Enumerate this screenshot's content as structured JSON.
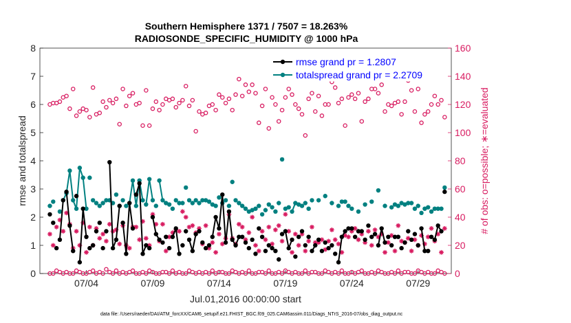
{
  "chart_data": {
    "type": "line",
    "title": "Southern Hemisphere 1371 / 7507 = 18.263%",
    "subtitle": "RADIOSONDE_SPECIFIC_HUMIDITY @ 1000 hPa",
    "xlabel": "Jul.01,2016 00:00:00 start",
    "ylabel_left": "rmse and totalspread",
    "ylabel_right": "# of obs: o=possible; ∗=evaluated",
    "footnote": "data file: /Users/raeder/DAI/ATM_forcXX/CAM6_setup/f.e21.FHIST_BGC.f09_025.CAM6assim.011/Diags_NTrS_2016-07/obs_diag_output.nc",
    "xlim": [
      0.5,
      31.5
    ],
    "ylim_left": [
      0,
      8
    ],
    "ylim_right": [
      0,
      160
    ],
    "x_ticks": [
      4,
      9,
      14,
      19,
      24,
      29
    ],
    "x_tick_labels": [
      "07/04",
      "07/09",
      "07/14",
      "07/19",
      "07/24",
      "07/29"
    ],
    "y_left_ticks": [
      0,
      1,
      2,
      3,
      4,
      5,
      6,
      7,
      8
    ],
    "y_right_ticks": [
      0,
      20,
      40,
      60,
      80,
      100,
      120,
      140,
      160
    ],
    "colors": {
      "rmse": "#000000",
      "spread": "#008080",
      "obs": "#d81b60"
    },
    "legend": [
      {
        "label": "rmse grand pr = 1.2807",
        "color": "#000000"
      },
      {
        "label": "totalspread grand pr = 2.2709",
        "color": "#008080"
      }
    ],
    "rmse_x": [
      1.25,
      1.5,
      1.75,
      2,
      2.25,
      2.5,
      2.75,
      3,
      3.25,
      3.5,
      3.75,
      4,
      4.25,
      4.5,
      4.75,
      5,
      5.25,
      5.5,
      5.75,
      6,
      6.25,
      6.5,
      6.75,
      7,
      7.25,
      7.5,
      7.75,
      8,
      8.25,
      8.5,
      8.75,
      9,
      9.25,
      9.5,
      9.75,
      10,
      10.25,
      10.5,
      10.75,
      11,
      11.25,
      11.5,
      11.75,
      12,
      12.25,
      12.5,
      12.75,
      13,
      13.25,
      13.5,
      13.75,
      14,
      14.25,
      14.5,
      14.75,
      15,
      15.25,
      15.5,
      15.75,
      16,
      16.25,
      16.5,
      16.75,
      17,
      17.25,
      17.5,
      17.75,
      18,
      18.25,
      18.5,
      18.75,
      19,
      19.25,
      19.5,
      19.75,
      20,
      20.25,
      20.5,
      20.75,
      21,
      21.25,
      21.5,
      21.75,
      22,
      22.25,
      22.5,
      22.75,
      23,
      23.25,
      23.5,
      23.75,
      24,
      24.25,
      24.5,
      24.75,
      25,
      25.25,
      25.5,
      25.75,
      26,
      26.25,
      26.5,
      26.75,
      27,
      27.25,
      27.5,
      27.75,
      28,
      28.25,
      28.5,
      28.75,
      29,
      29.25,
      29.5,
      29.75,
      30,
      30.25,
      30.5,
      30.75,
      31
    ],
    "rmse": [
      2.1,
      1.8,
      0.9,
      1.2,
      2.6,
      2.9,
      1.7,
      0.8,
      2.75,
      0.4,
      2.3,
      1.3,
      0.9,
      1.0,
      1.5,
      1.8,
      0.9,
      1.5,
      3.95,
      0.9,
      1.2,
      2.4,
      1.8,
      0.7,
      2.5,
      1.6,
      2.8,
      3.2,
      0.7,
      1.0,
      0.9,
      2.0,
      1.4,
      1.2,
      1.1,
      1.3,
      0.9,
      1.3,
      1.6,
      0.7,
      1.0,
      1.5,
      1.2,
      0.8,
      1.4,
      1.5,
      1.1,
      0.9,
      1.0,
      1.3,
      2.0,
      1.6,
      2.8,
      1.1,
      2.2,
      1.2,
      1.0,
      1.3,
      1.3,
      1.1,
      0.9,
      1.2,
      0.7,
      1.6,
      1.3,
      0.8,
      1.0,
      0.9,
      0.8,
      0.5,
      1.4,
      1.5,
      0.9,
      1.2,
      0.6,
      1.3,
      1.5,
      1.0,
      1.3,
      0.8,
      1.0,
      1.2,
      0.8,
      1.1,
      0.9,
      1.0,
      0.7,
      0.4,
      1.3,
      1.5,
      1.6,
      1.6,
      1.3,
      1.5,
      1.5,
      1.2,
      1.7,
      1.3,
      1.4,
      1.0,
      1.6,
      1.1,
      1.3,
      1.0,
      1.3,
      1.3,
      0.9,
      1.1,
      1.5,
      1.2,
      1.4,
      1.0,
      1.6,
      0.8,
      0.8,
      1.3,
      1.2,
      1.7,
      1.5,
      2.9
    ],
    "rmse_segments": [
      [
        3,
        4
      ],
      [
        5,
        7
      ],
      [
        9,
        11
      ],
      [
        18,
        21
      ],
      [
        22,
        25
      ],
      [
        26,
        29
      ],
      [
        31,
        32
      ],
      [
        32,
        33
      ],
      [
        37,
        39
      ],
      [
        42,
        44
      ],
      [
        49,
        53
      ],
      [
        53,
        55
      ],
      [
        55,
        57
      ],
      [
        71,
        73
      ],
      [
        79,
        80
      ],
      [
        87,
        89
      ],
      [
        99,
        101
      ],
      [
        112,
        114
      ],
      [
        116,
        118
      ]
    ],
    "spread_x": [
      1.25,
      1.5,
      2,
      2.25,
      2.5,
      2.75,
      3,
      3.25,
      3.5,
      3.75,
      4,
      4.25,
      4.5,
      4.75,
      5,
      5.25,
      5.5,
      5.75,
      6,
      6.25,
      6.5,
      6.75,
      7,
      7.25,
      7.5,
      7.75,
      8,
      8.25,
      8.5,
      8.75,
      9,
      9.25,
      9.5,
      9.75,
      10,
      10.25,
      10.5,
      10.75,
      11,
      11.25,
      11.5,
      11.75,
      12,
      12.25,
      12.5,
      12.75,
      13,
      13.25,
      13.5,
      13.75,
      14,
      14.25,
      14.5,
      14.75,
      15,
      15.25,
      15.5,
      15.75,
      16,
      16.25,
      16.5,
      16.75,
      17,
      17.25,
      17.5,
      17.75,
      18,
      18.25,
      18.5,
      18.75,
      19,
      19.25,
      19.5,
      19.75,
      20,
      20.25,
      20.5,
      20.75,
      21,
      21.5,
      22,
      22.5,
      23,
      23.25,
      23.5,
      23.75,
      24,
      24.5,
      25,
      25.5,
      26,
      26.5,
      27,
      27.25,
      27.5,
      27.75,
      28,
      28.25,
      28.5,
      28.75,
      29,
      29.25,
      29.5,
      29.75,
      30,
      30.25,
      30.5,
      30.75,
      31
    ],
    "spread": [
      2.4,
      2.55,
      2.2,
      2.6,
      2.85,
      3.65,
      2.6,
      2.3,
      3.75,
      3.4,
      2.3,
      3.4,
      2.6,
      2.5,
      2.4,
      2.5,
      2.6,
      2.6,
      2.5,
      2.8,
      2.4,
      2.6,
      2.4,
      2.5,
      3.3,
      2.4,
      3.3,
      2.6,
      2.45,
      3.35,
      2.6,
      2.4,
      3.3,
      2.6,
      2.5,
      2.45,
      2.3,
      2.6,
      2.5,
      2.5,
      3.05,
      2.6,
      2.5,
      2.6,
      2.5,
      2.6,
      2.6,
      2.55,
      2.45,
      2.4,
      2.7,
      2.5,
      2.6,
      2.4,
      3.25,
      2.6,
      2.5,
      2.4,
      2.3,
      2.2,
      2.25,
      2.3,
      2.4,
      2.1,
      2.25,
      2.45,
      2.35,
      2.2,
      2.5,
      4.05,
      2.3,
      2.35,
      2.2,
      2.5,
      2.45,
      2.4,
      2.5,
      2.3,
      2.6,
      2.6,
      2.75,
      2.5,
      2.4,
      2.55,
      2.55,
      2.4,
      2.3,
      2.2,
      2.45,
      2.55,
      2.95,
      2.4,
      2.35,
      2.45,
      2.4,
      2.5,
      2.45,
      2.5,
      2.5,
      2.3,
      2.4,
      2.15,
      2.3,
      2.35,
      2.2,
      2.3,
      2.3,
      2.3,
      3.05,
      2.6,
      2.45,
      2.65,
      2.45,
      3.15
    ],
    "spread_segments": [
      [
        3,
        10
      ],
      [
        23,
        27
      ],
      [
        28,
        30
      ],
      [
        32,
        35
      ],
      [
        45,
        47
      ],
      [
        56,
        58
      ],
      [
        72,
        74
      ],
      [
        108,
        111
      ]
    ],
    "obs_possible_x": [
      1.25,
      1.5,
      1.75,
      2,
      2.25,
      2.5,
      2.75,
      3,
      3.25,
      3.5,
      3.75,
      4,
      4.25,
      4.5,
      4.75,
      5,
      5.25,
      5.5,
      5.75,
      6,
      6.25,
      6.5,
      6.75,
      7,
      7.25,
      7.5,
      7.75,
      8,
      8.25,
      8.5,
      8.75,
      9,
      9.25,
      9.5,
      9.75,
      10,
      10.25,
      10.5,
      10.75,
      11,
      11.25,
      11.5,
      11.75,
      12,
      12.25,
      12.5,
      12.75,
      13,
      13.25,
      13.5,
      13.75,
      14,
      14.25,
      14.5,
      14.75,
      15,
      15.25,
      15.5,
      15.75,
      16,
      16.25,
      16.5,
      16.75,
      17,
      17.25,
      17.5,
      17.75,
      18,
      18.25,
      18.5,
      18.75,
      19,
      19.25,
      19.5,
      19.75,
      20,
      20.25,
      20.5,
      20.75,
      21,
      21.25,
      21.5,
      21.75,
      22,
      22.25,
      22.5,
      22.75,
      23,
      23.25,
      23.5,
      23.75,
      24,
      24.25,
      24.5,
      24.75,
      25,
      25.25,
      25.5,
      25.75,
      26,
      26.25,
      26.5,
      26.75,
      27,
      27.25,
      27.5,
      27.75,
      28,
      28.25,
      28.5,
      28.75,
      29,
      29.25,
      29.5,
      29.75,
      30,
      30.25,
      30.5,
      30.75,
      31
    ],
    "obs_possible": [
      120,
      121,
      121,
      122,
      125,
      126,
      117,
      131,
      112,
      115,
      117,
      116,
      111,
      132,
      113,
      114,
      122,
      118,
      123,
      121,
      124,
      106,
      131,
      119,
      126,
      128,
      120,
      121,
      105,
      130,
      105,
      117,
      122,
      116,
      120,
      124,
      123,
      124,
      118,
      121,
      123,
      133,
      119,
      123,
      101,
      115,
      113,
      114,
      119,
      120,
      116,
      127,
      125,
      121,
      124,
      116,
      127,
      138,
      126,
      134,
      129,
      134,
      128,
      107,
      119,
      131,
      103,
      125,
      120,
      108,
      116,
      125,
      131,
      127,
      120,
      117,
      113,
      98,
      124,
      128,
      115,
      126,
      112,
      120,
      120,
      136,
      132,
      121,
      124,
      105,
      125,
      127,
      124,
      128,
      108,
      122,
      124,
      131,
      131,
      128,
      134,
      115,
      120,
      119,
      121,
      122,
      113,
      122,
      137,
      130,
      115,
      131,
      107,
      113,
      115,
      120,
      126,
      120,
      123,
      111
    ],
    "obs_evaluated_x": [
      1.25,
      1.5,
      1.75,
      2,
      2.25,
      2.5,
      2.75,
      3,
      3.25,
      3.5,
      3.75,
      4,
      4.25,
      4.5,
      4.75,
      5,
      5.25,
      5.5,
      5.75,
      6,
      6.25,
      6.5,
      6.75,
      7,
      7.25,
      7.5,
      7.75,
      8,
      8.25,
      8.5,
      8.75,
      9,
      9.25,
      9.5,
      9.75,
      10,
      10.25,
      10.5,
      10.75,
      11,
      11.25,
      11.5,
      11.75,
      12,
      12.25,
      12.5,
      12.75,
      13,
      13.25,
      13.5,
      13.75,
      14,
      14.25,
      14.5,
      14.75,
      15,
      15.25,
      15.5,
      15.75,
      16,
      16.25,
      16.5,
      16.75,
      17,
      17.25,
      17.5,
      17.75,
      18,
      18.25,
      18.5,
      18.75,
      19,
      19.25,
      19.5,
      19.75,
      20,
      20.25,
      20.5,
      20.75,
      21,
      21.25,
      21.5,
      21.75,
      22,
      22.25,
      22.5,
      22.75,
      23,
      23.25,
      23.5,
      23.75,
      24,
      24.25,
      24.5,
      24.75,
      25,
      25.25,
      25.5,
      25.75,
      26,
      26.25,
      26.5,
      26.75,
      27,
      27.25,
      27.5,
      27.75,
      28,
      28.25,
      28.5,
      28.75,
      29,
      29.25,
      29.5,
      29.75,
      30,
      30.25,
      30.5,
      30.75,
      31
    ],
    "obs_evaluated": [
      28,
      20,
      33,
      38,
      30,
      43,
      35,
      18,
      30,
      20,
      36,
      15,
      33,
      20,
      32,
      25,
      28,
      23,
      35,
      30,
      31,
      21,
      34,
      20,
      18,
      33,
      33,
      24,
      37,
      25,
      20,
      42,
      35,
      23,
      35,
      16,
      26,
      29,
      31,
      30,
      44,
      40,
      33,
      34,
      29,
      32,
      21,
      34,
      18,
      22,
      15,
      28,
      21,
      25,
      42,
      25,
      21,
      35,
      33,
      24,
      29,
      40,
      20,
      16,
      30,
      24,
      33,
      21,
      31,
      34,
      23,
      42,
      30,
      15,
      28,
      20,
      28,
      16,
      23,
      33,
      22,
      22,
      24,
      17,
      23,
      31,
      24,
      21,
      15,
      27,
      26,
      30,
      32,
      24,
      28,
      22,
      30,
      20,
      31,
      26,
      28,
      15,
      22,
      27,
      16,
      34,
      23,
      22,
      25,
      16,
      24,
      20,
      27,
      21,
      26,
      32,
      23,
      28,
      15,
      32
    ],
    "obs_possible_zero_x": [
      1.25,
      1.5,
      1.75,
      2,
      2.25,
      2.5,
      2.75,
      3,
      3.25,
      3.5,
      3.75,
      4,
      4.25,
      4.5,
      4.75,
      5,
      5.25,
      5.5,
      5.75,
      6,
      6.25,
      6.5,
      6.75,
      7,
      7.25,
      7.5,
      7.75,
      8,
      8.25,
      8.5,
      8.75,
      9,
      9.25,
      9.5,
      9.75,
      10,
      10.25,
      10.5,
      10.75,
      11,
      11.25,
      11.5,
      11.75,
      12,
      12.25,
      12.5,
      12.75,
      13,
      13.25,
      13.5,
      13.75,
      14,
      14.25,
      14.5,
      14.75,
      15,
      15.25,
      15.5,
      15.75,
      16,
      16.25,
      16.5,
      16.75,
      17,
      17.25,
      17.5,
      17.75,
      18,
      18.25,
      18.5,
      18.75,
      19,
      19.25,
      19.5,
      19.75,
      20,
      20.25,
      20.5,
      20.75,
      21,
      21.25,
      21.5,
      21.75,
      22,
      22.25,
      22.5,
      22.75,
      23,
      23.25,
      23.5,
      23.75,
      24,
      24.25,
      24.5,
      24.75,
      25,
      25.25,
      25.5,
      25.75,
      26,
      26.25,
      26.5,
      26.75,
      27,
      27.25,
      27.5,
      27.75,
      28,
      28.25,
      28.5,
      28.75,
      29,
      29.25,
      29.5,
      29.75,
      30,
      30.25,
      30.5,
      30.75,
      31
    ],
    "obs_possible_zero": [
      0,
      0,
      2,
      1,
      0,
      1,
      0,
      0,
      2,
      1,
      0,
      0,
      1,
      2,
      0,
      1,
      0,
      3,
      1,
      0,
      2,
      0,
      1,
      0,
      1,
      2,
      0,
      0,
      1,
      0,
      2,
      1,
      0,
      0,
      1,
      1,
      0,
      2,
      0,
      1,
      0,
      0,
      2,
      1,
      0,
      1,
      0,
      1,
      0,
      2,
      0,
      1,
      1,
      0,
      0,
      2,
      1,
      0,
      1,
      0,
      2,
      0,
      0,
      1,
      1,
      0,
      2,
      0,
      0,
      1,
      0,
      2,
      1,
      0,
      1,
      0,
      0,
      2,
      0,
      1,
      1,
      0,
      0,
      2,
      1,
      0,
      1,
      0,
      2,
      0,
      0,
      1,
      0,
      1,
      2,
      0,
      0,
      1,
      0,
      2,
      1,
      0,
      0,
      1,
      0,
      2,
      0,
      1,
      1,
      0,
      0,
      2,
      1,
      0,
      1,
      0,
      0,
      2,
      1,
      0
    ]
  }
}
